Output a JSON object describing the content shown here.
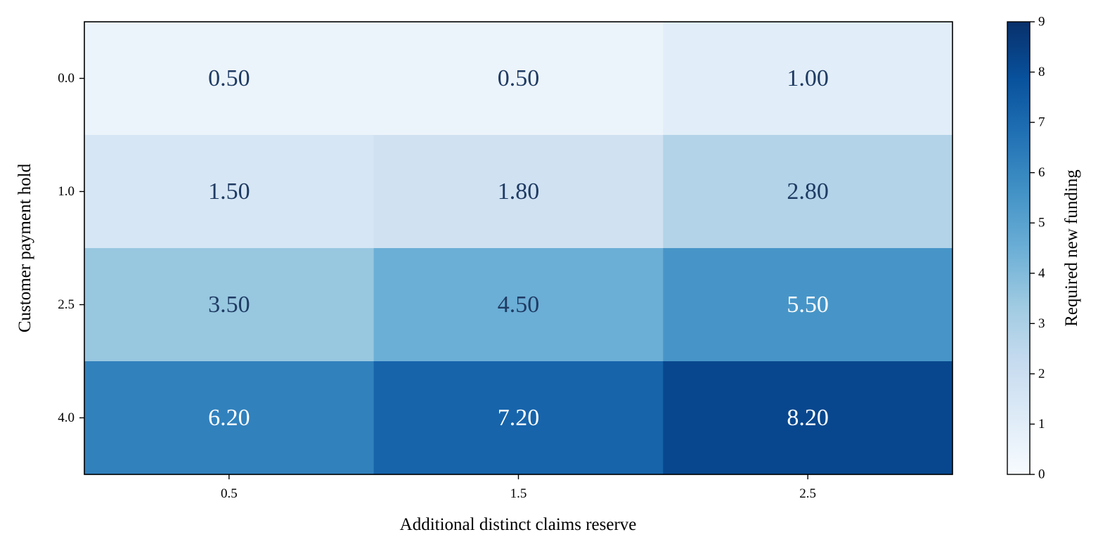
{
  "chart_data": {
    "type": "heatmap",
    "x_categories": [
      "0.5",
      "1.5",
      "2.5"
    ],
    "y_categories": [
      "0.0",
      "1.0",
      "2.5",
      "4.0"
    ],
    "values": [
      [
        0.5,
        0.5,
        1.0
      ],
      [
        1.5,
        1.8,
        2.8
      ],
      [
        3.5,
        4.5,
        5.5
      ],
      [
        6.2,
        7.2,
        8.2
      ]
    ],
    "cell_labels": [
      [
        "0.50",
        "0.50",
        "1.00"
      ],
      [
        "1.50",
        "1.80",
        "2.80"
      ],
      [
        "3.50",
        "4.50",
        "5.50"
      ],
      [
        "6.20",
        "7.20",
        "8.20"
      ]
    ],
    "xlabel": "Additional distinct claims reserve",
    "ylabel": "Customer payment hold",
    "colorbar": {
      "label": "Required new funding",
      "range": [
        0,
        9
      ],
      "ticks": [
        "0",
        "1",
        "2",
        "3",
        "4",
        "5",
        "6",
        "7",
        "8",
        "9"
      ]
    },
    "colormap": "Blues",
    "text_colors": {
      "dark": "#1f3b63",
      "light": "#ffffff"
    }
  }
}
